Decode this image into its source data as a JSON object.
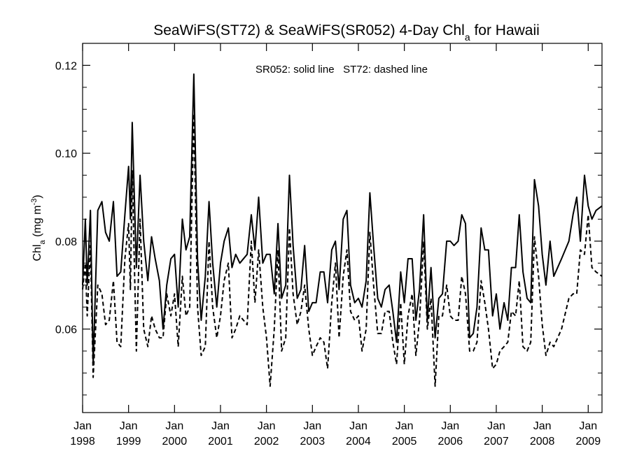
{
  "chart_data": {
    "type": "line",
    "title_main": "SeaWiFS(ST72) & SeaWiFS(SR052) 4-Day Chl",
    "title_sub": "a",
    "title_tail": " for Hawaii",
    "annotation": "SR052: solid line   ST72: dashed line",
    "ylabel_main": "Chl",
    "ylabel_sub": "a",
    "ylabel_units": " (mg m",
    "ylabel_sup": "-3",
    "ylabel_close": ")",
    "xlim": [
      1998.0,
      2009.3
    ],
    "ylim": [
      0.041,
      0.125
    ],
    "y_ticks": [
      0.06,
      0.08,
      0.1,
      0.12
    ],
    "y_tick_labels": [
      "0.06",
      "0.08",
      "0.10",
      "0.12"
    ],
    "y_minor_ticks": [
      0.045,
      0.05,
      0.055,
      0.065,
      0.07,
      0.075,
      0.085,
      0.09,
      0.095,
      0.105,
      0.11,
      0.115
    ],
    "x_ticks": [
      1998,
      1999,
      2000,
      2001,
      2002,
      2003,
      2004,
      2005,
      2006,
      2007,
      2008,
      2009
    ],
    "x_tick_labels_month": [
      "Jan",
      "Jan",
      "Jan",
      "Jan",
      "Jan",
      "Jan",
      "Jan",
      "Jan",
      "Jan",
      "Jan",
      "Jan",
      "Jan"
    ],
    "x_tick_labels_year": [
      "1998",
      "1999",
      "2000",
      "2001",
      "2002",
      "2003",
      "2004",
      "2005",
      "2006",
      "2007",
      "2008",
      "2009"
    ],
    "series": [
      {
        "line_style": "solid",
        "points": [
          [
            1998.0,
            0.07
          ],
          [
            1998.06,
            0.085
          ],
          [
            1998.1,
            0.07
          ],
          [
            1998.17,
            0.087
          ],
          [
            1998.23,
            0.052
          ],
          [
            1998.33,
            0.087
          ],
          [
            1998.42,
            0.089
          ],
          [
            1998.5,
            0.082
          ],
          [
            1998.58,
            0.08
          ],
          [
            1998.67,
            0.089
          ],
          [
            1998.75,
            0.072
          ],
          [
            1998.83,
            0.073
          ],
          [
            1998.92,
            0.086
          ],
          [
            1999.0,
            0.097
          ],
          [
            1999.04,
            0.085
          ],
          [
            1999.08,
            0.107
          ],
          [
            1999.17,
            0.074
          ],
          [
            1999.25,
            0.095
          ],
          [
            1999.33,
            0.08
          ],
          [
            1999.42,
            0.071
          ],
          [
            1999.5,
            0.081
          ],
          [
            1999.58,
            0.076
          ],
          [
            1999.67,
            0.071
          ],
          [
            1999.75,
            0.06
          ],
          [
            1999.83,
            0.07
          ],
          [
            1999.92,
            0.076
          ],
          [
            2000.0,
            0.077
          ],
          [
            2000.08,
            0.065
          ],
          [
            2000.17,
            0.085
          ],
          [
            2000.25,
            0.078
          ],
          [
            2000.33,
            0.081
          ],
          [
            2000.42,
            0.118
          ],
          [
            2000.5,
            0.076
          ],
          [
            2000.58,
            0.062
          ],
          [
            2000.67,
            0.072
          ],
          [
            2000.75,
            0.089
          ],
          [
            2000.83,
            0.075
          ],
          [
            2000.92,
            0.065
          ],
          [
            2001.0,
            0.075
          ],
          [
            2001.08,
            0.08
          ],
          [
            2001.17,
            0.083
          ],
          [
            2001.25,
            0.074
          ],
          [
            2001.33,
            0.077
          ],
          [
            2001.42,
            0.075
          ],
          [
            2001.58,
            0.077
          ],
          [
            2001.67,
            0.086
          ],
          [
            2001.75,
            0.078
          ],
          [
            2001.83,
            0.09
          ],
          [
            2001.92,
            0.075
          ],
          [
            2002.0,
            0.077
          ],
          [
            2002.08,
            0.077
          ],
          [
            2002.17,
            0.068
          ],
          [
            2002.25,
            0.084
          ],
          [
            2002.33,
            0.067
          ],
          [
            2002.42,
            0.07
          ],
          [
            2002.5,
            0.095
          ],
          [
            2002.58,
            0.079
          ],
          [
            2002.67,
            0.067
          ],
          [
            2002.75,
            0.069
          ],
          [
            2002.83,
            0.079
          ],
          [
            2002.92,
            0.064
          ],
          [
            2003.0,
            0.066
          ],
          [
            2003.08,
            0.066
          ],
          [
            2003.17,
            0.073
          ],
          [
            2003.25,
            0.073
          ],
          [
            2003.33,
            0.066
          ],
          [
            2003.42,
            0.078
          ],
          [
            2003.5,
            0.08
          ],
          [
            2003.58,
            0.069
          ],
          [
            2003.67,
            0.085
          ],
          [
            2003.75,
            0.087
          ],
          [
            2003.83,
            0.07
          ],
          [
            2003.92,
            0.066
          ],
          [
            2004.0,
            0.067
          ],
          [
            2004.08,
            0.065
          ],
          [
            2004.17,
            0.071
          ],
          [
            2004.25,
            0.091
          ],
          [
            2004.33,
            0.079
          ],
          [
            2004.42,
            0.067
          ],
          [
            2004.5,
            0.065
          ],
          [
            2004.58,
            0.069
          ],
          [
            2004.67,
            0.07
          ],
          [
            2004.75,
            0.064
          ],
          [
            2004.83,
            0.057
          ],
          [
            2004.92,
            0.073
          ],
          [
            2005.0,
            0.066
          ],
          [
            2005.08,
            0.076
          ],
          [
            2005.17,
            0.076
          ],
          [
            2005.25,
            0.062
          ],
          [
            2005.33,
            0.069
          ],
          [
            2005.42,
            0.086
          ],
          [
            2005.5,
            0.062
          ],
          [
            2005.58,
            0.074
          ],
          [
            2005.67,
            0.058
          ],
          [
            2005.75,
            0.067
          ],
          [
            2005.83,
            0.068
          ],
          [
            2005.92,
            0.08
          ],
          [
            2006.0,
            0.08
          ],
          [
            2006.08,
            0.079
          ],
          [
            2006.17,
            0.08
          ],
          [
            2006.25,
            0.086
          ],
          [
            2006.33,
            0.084
          ],
          [
            2006.42,
            0.058
          ],
          [
            2006.5,
            0.059
          ],
          [
            2006.58,
            0.065
          ],
          [
            2006.67,
            0.083
          ],
          [
            2006.75,
            0.078
          ],
          [
            2006.83,
            0.078
          ],
          [
            2006.92,
            0.063
          ],
          [
            2007.0,
            0.068
          ],
          [
            2007.08,
            0.06
          ],
          [
            2007.17,
            0.066
          ],
          [
            2007.25,
            0.062
          ],
          [
            2007.33,
            0.074
          ],
          [
            2007.42,
            0.074
          ],
          [
            2007.5,
            0.086
          ],
          [
            2007.58,
            0.073
          ],
          [
            2007.67,
            0.067
          ],
          [
            2007.75,
            0.066
          ],
          [
            2007.83,
            0.094
          ],
          [
            2007.92,
            0.088
          ],
          [
            2008.0,
            0.077
          ],
          [
            2008.08,
            0.07
          ],
          [
            2008.17,
            0.08
          ],
          [
            2008.25,
            0.072
          ],
          [
            2008.42,
            0.076
          ],
          [
            2008.58,
            0.08
          ],
          [
            2008.67,
            0.086
          ],
          [
            2008.75,
            0.09
          ],
          [
            2008.83,
            0.08
          ],
          [
            2008.92,
            0.095
          ],
          [
            2009.0,
            0.088
          ],
          [
            2009.08,
            0.085
          ],
          [
            2009.17,
            0.087
          ],
          [
            2009.3,
            0.088
          ]
        ]
      },
      {
        "line_style": "dashed",
        "points": [
          [
            1998.0,
            0.069
          ],
          [
            1998.06,
            0.075
          ],
          [
            1998.1,
            0.063
          ],
          [
            1998.17,
            0.079
          ],
          [
            1998.23,
            0.049
          ],
          [
            1998.33,
            0.07
          ],
          [
            1998.42,
            0.068
          ],
          [
            1998.5,
            0.061
          ],
          [
            1998.58,
            0.062
          ],
          [
            1998.67,
            0.071
          ],
          [
            1998.75,
            0.057
          ],
          [
            1998.83,
            0.056
          ],
          [
            1998.92,
            0.076
          ],
          [
            1999.0,
            0.084
          ],
          [
            1999.04,
            0.069
          ],
          [
            1999.08,
            0.096
          ],
          [
            1999.17,
            0.055
          ],
          [
            1999.25,
            0.085
          ],
          [
            1999.33,
            0.06
          ],
          [
            1999.42,
            0.056
          ],
          [
            1999.5,
            0.063
          ],
          [
            1999.58,
            0.06
          ],
          [
            1999.67,
            0.058
          ],
          [
            1999.75,
            0.058
          ],
          [
            1999.83,
            0.068
          ],
          [
            1999.92,
            0.063
          ],
          [
            2000.0,
            0.068
          ],
          [
            2000.08,
            0.056
          ],
          [
            2000.17,
            0.072
          ],
          [
            2000.25,
            0.063
          ],
          [
            2000.33,
            0.065
          ],
          [
            2000.42,
            0.109
          ],
          [
            2000.5,
            0.065
          ],
          [
            2000.58,
            0.054
          ],
          [
            2000.67,
            0.056
          ],
          [
            2000.75,
            0.08
          ],
          [
            2000.83,
            0.065
          ],
          [
            2000.92,
            0.058
          ],
          [
            2001.0,
            0.063
          ],
          [
            2001.08,
            0.071
          ],
          [
            2001.17,
            0.075
          ],
          [
            2001.25,
            0.058
          ],
          [
            2001.33,
            0.06
          ],
          [
            2001.42,
            0.063
          ],
          [
            2001.58,
            0.061
          ],
          [
            2001.67,
            0.08
          ],
          [
            2001.75,
            0.066
          ],
          [
            2001.83,
            0.078
          ],
          [
            2001.92,
            0.065
          ],
          [
            2002.0,
            0.058
          ],
          [
            2002.08,
            0.047
          ],
          [
            2002.17,
            0.06
          ],
          [
            2002.25,
            0.078
          ],
          [
            2002.33,
            0.055
          ],
          [
            2002.42,
            0.058
          ],
          [
            2002.5,
            0.083
          ],
          [
            2002.58,
            0.068
          ],
          [
            2002.67,
            0.061
          ],
          [
            2002.75,
            0.064
          ],
          [
            2002.83,
            0.07
          ],
          [
            2002.92,
            0.06
          ],
          [
            2003.0,
            0.054
          ],
          [
            2003.08,
            0.056
          ],
          [
            2003.17,
            0.058
          ],
          [
            2003.25,
            0.057
          ],
          [
            2003.33,
            0.051
          ],
          [
            2003.42,
            0.066
          ],
          [
            2003.5,
            0.075
          ],
          [
            2003.58,
            0.058
          ],
          [
            2003.67,
            0.072
          ],
          [
            2003.75,
            0.078
          ],
          [
            2003.83,
            0.064
          ],
          [
            2003.92,
            0.062
          ],
          [
            2004.0,
            0.063
          ],
          [
            2004.08,
            0.055
          ],
          [
            2004.17,
            0.06
          ],
          [
            2004.25,
            0.082
          ],
          [
            2004.33,
            0.07
          ],
          [
            2004.42,
            0.059
          ],
          [
            2004.5,
            0.059
          ],
          [
            2004.58,
            0.064
          ],
          [
            2004.67,
            0.064
          ],
          [
            2004.75,
            0.057
          ],
          [
            2004.83,
            0.052
          ],
          [
            2004.92,
            0.066
          ],
          [
            2005.0,
            0.052
          ],
          [
            2005.08,
            0.063
          ],
          [
            2005.17,
            0.068
          ],
          [
            2005.25,
            0.054
          ],
          [
            2005.33,
            0.062
          ],
          [
            2005.42,
            0.08
          ],
          [
            2005.5,
            0.06
          ],
          [
            2005.58,
            0.067
          ],
          [
            2005.67,
            0.047
          ],
          [
            2005.75,
            0.063
          ],
          [
            2005.83,
            0.063
          ],
          [
            2005.92,
            0.07
          ],
          [
            2006.0,
            0.063
          ],
          [
            2006.08,
            0.062
          ],
          [
            2006.17,
            0.062
          ],
          [
            2006.25,
            0.072
          ],
          [
            2006.33,
            0.068
          ],
          [
            2006.42,
            0.055
          ],
          [
            2006.5,
            0.055
          ],
          [
            2006.58,
            0.057
          ],
          [
            2006.67,
            0.071
          ],
          [
            2006.75,
            0.066
          ],
          [
            2006.83,
            0.06
          ],
          [
            2006.92,
            0.051
          ],
          [
            2007.0,
            0.052
          ],
          [
            2007.08,
            0.055
          ],
          [
            2007.17,
            0.056
          ],
          [
            2007.25,
            0.057
          ],
          [
            2007.33,
            0.064
          ],
          [
            2007.42,
            0.063
          ],
          [
            2007.5,
            0.071
          ],
          [
            2007.58,
            0.056
          ],
          [
            2007.67,
            0.055
          ],
          [
            2007.75,
            0.057
          ],
          [
            2007.83,
            0.081
          ],
          [
            2007.92,
            0.072
          ],
          [
            2008.0,
            0.061
          ],
          [
            2008.08,
            0.054
          ],
          [
            2008.17,
            0.057
          ],
          [
            2008.25,
            0.056
          ],
          [
            2008.42,
            0.06
          ],
          [
            2008.58,
            0.067
          ],
          [
            2008.67,
            0.068
          ],
          [
            2008.75,
            0.068
          ],
          [
            2008.83,
            0.078
          ],
          [
            2008.92,
            0.077
          ],
          [
            2009.0,
            0.086
          ],
          [
            2009.08,
            0.074
          ],
          [
            2009.17,
            0.073
          ],
          [
            2009.3,
            0.072
          ]
        ]
      }
    ],
    "grid": false,
    "colors": {
      "lines": "#000000",
      "background": "#ffffff"
    }
  }
}
